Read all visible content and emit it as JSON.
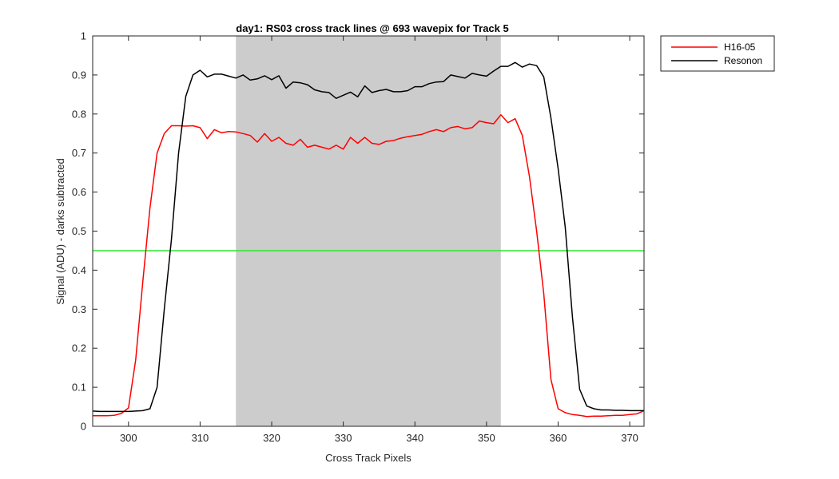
{
  "chart_data": {
    "type": "line",
    "title": "day1: RS03  cross track lines @ 693 wavepix for Track 5",
    "xlabel": "Cross Track Pixels",
    "ylabel": "Signal (ADU) - darks subtracted",
    "xlim": [
      295,
      372
    ],
    "ylim": [
      0,
      1
    ],
    "xticks": [
      300,
      310,
      320,
      330,
      340,
      350,
      360,
      370
    ],
    "yticks": [
      0,
      0.1,
      0.2,
      0.3,
      0.4,
      0.5,
      0.6,
      0.7,
      0.8,
      0.9,
      1
    ],
    "grid": false,
    "legend_position": "outside top-right",
    "shaded_region": {
      "x": [
        315,
        352
      ],
      "color": "#cccccc"
    },
    "threshold_line": {
      "y": 0.45,
      "color": "#2ee62e"
    },
    "series": [
      {
        "name": "H16-05",
        "color": "#ff0000",
        "x": [
          295,
          296,
          297,
          298,
          299,
          300,
          301,
          302,
          303,
          304,
          305,
          306,
          307,
          308,
          309,
          310,
          311,
          312,
          313,
          314,
          315,
          316,
          317,
          318,
          319,
          320,
          321,
          322,
          323,
          324,
          325,
          326,
          327,
          328,
          329,
          330,
          331,
          332,
          333,
          334,
          335,
          336,
          337,
          338,
          339,
          340,
          341,
          342,
          343,
          344,
          345,
          346,
          347,
          348,
          349,
          350,
          351,
          352,
          353,
          354,
          355,
          356,
          357,
          358,
          359,
          360,
          361,
          362,
          363,
          364,
          365,
          366,
          367,
          368,
          369,
          370,
          371,
          372
        ],
        "y": [
          0.027,
          0.027,
          0.027,
          0.028,
          0.033,
          0.047,
          0.17,
          0.37,
          0.56,
          0.7,
          0.75,
          0.77,
          0.77,
          0.769,
          0.77,
          0.765,
          0.737,
          0.76,
          0.752,
          0.755,
          0.754,
          0.75,
          0.745,
          0.728,
          0.75,
          0.73,
          0.74,
          0.725,
          0.72,
          0.735,
          0.715,
          0.72,
          0.715,
          0.71,
          0.72,
          0.71,
          0.74,
          0.725,
          0.74,
          0.725,
          0.722,
          0.73,
          0.732,
          0.738,
          0.742,
          0.745,
          0.748,
          0.755,
          0.76,
          0.755,
          0.765,
          0.768,
          0.762,
          0.765,
          0.782,
          0.778,
          0.775,
          0.798,
          0.778,
          0.788,
          0.745,
          0.64,
          0.5,
          0.34,
          0.12,
          0.045,
          0.035,
          0.03,
          0.028,
          0.025,
          0.026,
          0.026,
          0.027,
          0.028,
          0.028,
          0.03,
          0.032,
          0.04
        ]
      },
      {
        "name": "Resonon",
        "color": "#000000",
        "x": [
          295,
          296,
          297,
          298,
          299,
          300,
          301,
          302,
          303,
          304,
          305,
          306,
          307,
          308,
          309,
          310,
          311,
          312,
          313,
          314,
          315,
          316,
          317,
          318,
          319,
          320,
          321,
          322,
          323,
          324,
          325,
          326,
          327,
          328,
          329,
          330,
          331,
          332,
          333,
          334,
          335,
          336,
          337,
          338,
          339,
          340,
          341,
          342,
          343,
          344,
          345,
          346,
          347,
          348,
          349,
          350,
          351,
          352,
          353,
          354,
          355,
          356,
          357,
          358,
          359,
          360,
          361,
          362,
          363,
          364,
          365,
          366,
          367,
          368,
          369,
          370,
          371,
          372
        ],
        "y": [
          0.039,
          0.038,
          0.038,
          0.038,
          0.038,
          0.038,
          0.039,
          0.04,
          0.045,
          0.1,
          0.3,
          0.48,
          0.7,
          0.845,
          0.9,
          0.912,
          0.895,
          0.902,
          0.902,
          0.897,
          0.892,
          0.9,
          0.887,
          0.89,
          0.898,
          0.888,
          0.898,
          0.866,
          0.882,
          0.88,
          0.875,
          0.862,
          0.857,
          0.855,
          0.84,
          0.848,
          0.856,
          0.844,
          0.872,
          0.855,
          0.86,
          0.863,
          0.857,
          0.857,
          0.86,
          0.87,
          0.87,
          0.878,
          0.882,
          0.883,
          0.9,
          0.896,
          0.892,
          0.904,
          0.9,
          0.897,
          0.91,
          0.922,
          0.922,
          0.932,
          0.92,
          0.928,
          0.924,
          0.895,
          0.79,
          0.66,
          0.51,
          0.28,
          0.095,
          0.052,
          0.045,
          0.042,
          0.042,
          0.041,
          0.041,
          0.04,
          0.04,
          0.04
        ]
      }
    ]
  }
}
